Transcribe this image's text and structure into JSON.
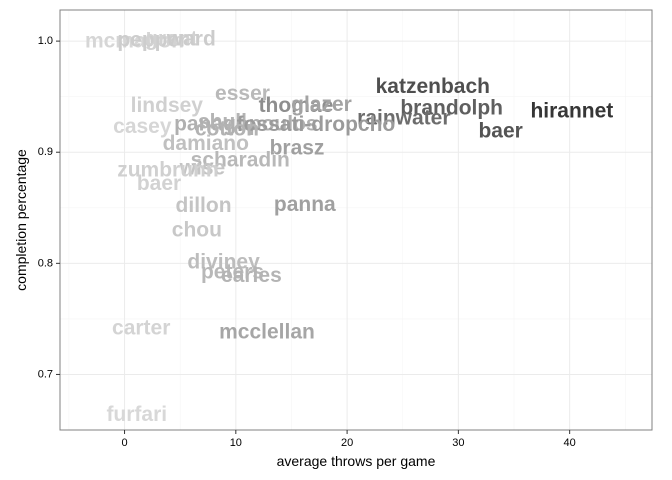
{
  "chart_data": {
    "type": "scatter",
    "title": "",
    "xlabel": "average throws per game",
    "ylabel": "completion percentage",
    "xlim": [
      -5.8,
      47.4
    ],
    "ylim": [
      0.65,
      1.028
    ],
    "xticks": [
      0,
      10,
      20,
      30,
      40
    ],
    "yticks": [
      0.7,
      0.8,
      0.9,
      1.0
    ],
    "xtick_labels": [
      "0",
      "10",
      "20",
      "30",
      "40"
    ],
    "ytick_labels": [
      "0.7",
      "0.8",
      "0.9",
      "1.0"
    ],
    "grid": true,
    "points": [
      {
        "label": "mcmahon",
        "x": 0.9,
        "y": 1.0,
        "shade": "#d6d6d6"
      },
      {
        "label": "pepper",
        "x": 2.5,
        "y": 1.001,
        "shade": "#cdcdcd"
      },
      {
        "label": "grant",
        "x": 4.2,
        "y": 1.002,
        "shade": "#d2d2d2"
      },
      {
        "label": "ward",
        "x": 6.0,
        "y": 1.002,
        "shade": "#cccccc"
      },
      {
        "label": "katzenbach",
        "x": 27.7,
        "y": 0.959,
        "shade": "#4f4f4f"
      },
      {
        "label": "esser",
        "x": 10.6,
        "y": 0.953,
        "shade": "#b9b9b9"
      },
      {
        "label": "hirannet",
        "x": 40.2,
        "y": 0.937,
        "shade": "#363636"
      },
      {
        "label": "thomae",
        "x": 15.4,
        "y": 0.942,
        "shade": "#8e8e8e"
      },
      {
        "label": "glazer",
        "x": 17.7,
        "y": 0.943,
        "shade": "#a3a3a3"
      },
      {
        "label": "brandolph",
        "x": 29.4,
        "y": 0.94,
        "shade": "#5f5f5f"
      },
      {
        "label": "lindsey",
        "x": 3.8,
        "y": 0.942,
        "shade": "#d0d0d0"
      },
      {
        "label": "rainwater",
        "x": 25.1,
        "y": 0.931,
        "shade": "#6d6d6d"
      },
      {
        "label": "shull",
        "x": 8.8,
        "y": 0.927,
        "shade": "#b4b4b4"
      },
      {
        "label": "panagopoulos",
        "x": 10.9,
        "y": 0.9255,
        "shade": "#b0b0b0"
      },
      {
        "label": "fossati-dropcho",
        "x": 17.2,
        "y": 0.925,
        "shade": "#9b9b9b"
      },
      {
        "label": "casey",
        "x": 1.6,
        "y": 0.923,
        "shade": "#d6d6d6"
      },
      {
        "label": "cotton",
        "x": 9.2,
        "y": 0.921,
        "shade": "#b3b3b3"
      },
      {
        "label": "baer",
        "x": 33.8,
        "y": 0.919,
        "shade": "#545454"
      },
      {
        "label": "damiano",
        "x": 7.3,
        "y": 0.908,
        "shade": "#c0c0c0"
      },
      {
        "label": "brasz",
        "x": 15.5,
        "y": 0.904,
        "shade": "#a0a0a0"
      },
      {
        "label": "scharadin",
        "x": 10.4,
        "y": 0.893,
        "shade": "#b8b8b8"
      },
      {
        "label": "wise",
        "x": 7.0,
        "y": 0.886,
        "shade": "#c4c4c4"
      },
      {
        "label": "zumbrunn",
        "x": 3.9,
        "y": 0.884,
        "shade": "#d0d0d0"
      },
      {
        "label": "baer",
        "x": 3.1,
        "y": 0.872,
        "shade": "#d2d2d2"
      },
      {
        "label": "panna",
        "x": 16.2,
        "y": 0.853,
        "shade": "#a0a0a0"
      },
      {
        "label": "dillon",
        "x": 7.1,
        "y": 0.852,
        "shade": "#c4c4c4"
      },
      {
        "label": "chou",
        "x": 6.5,
        "y": 0.83,
        "shade": "#c8c8c8"
      },
      {
        "label": "diviney",
        "x": 8.9,
        "y": 0.801,
        "shade": "#bdbdbd"
      },
      {
        "label": "peters",
        "x": 9.7,
        "y": 0.792,
        "shade": "#b8b8b8"
      },
      {
        "label": "earles",
        "x": 11.4,
        "y": 0.789,
        "shade": "#b4b4b4"
      },
      {
        "label": "carter",
        "x": 1.5,
        "y": 0.742,
        "shade": "#d4d4d4"
      },
      {
        "label": "mcclellan",
        "x": 12.8,
        "y": 0.738,
        "shade": "#a6a6a6"
      },
      {
        "label": "furfari",
        "x": 1.1,
        "y": 0.664,
        "shade": "#d8d8d8"
      }
    ]
  },
  "style": {
    "panel_border": "#808080",
    "grid_major": "#ebebeb",
    "grid_minor": "#f5f5f5",
    "tick_color": "#333333"
  }
}
